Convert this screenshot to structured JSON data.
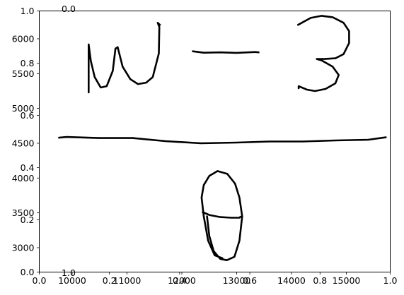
{
  "chart_data": [
    {
      "type": "axes",
      "xlim": [
        0.0,
        1.0
      ],
      "ylim": [
        0.0,
        1.0
      ],
      "x_ticks": [
        0.0,
        0.2,
        0.4,
        0.6,
        0.8,
        1.0
      ],
      "y_ticks": [
        0.0,
        0.2,
        0.4,
        0.6,
        0.8,
        1.0
      ],
      "x_tick_labels": [
        "0.0",
        "0.2",
        "0.4",
        "0.6",
        "0.8",
        "1.0"
      ],
      "y_tick_labels": [
        "0.0",
        "0.2",
        "0.4",
        "0.6",
        "0.8",
        "1.0"
      ],
      "grid": false
    },
    {
      "type": "line",
      "xlim": [
        9400,
        15800
      ],
      "ylim": [
        2650,
        6400
      ],
      "x_ticks": [
        10000,
        11000,
        12000,
        13000,
        14000,
        15000
      ],
      "y_ticks": [
        3000,
        3500,
        4000,
        4500,
        5000,
        5500,
        6000
      ],
      "x_tick_labels": [
        "10000",
        "11000",
        "12000",
        "13000",
        "14000",
        "15000"
      ],
      "y_tick_labels": [
        "3000",
        "3500",
        "4000",
        "4500",
        "5000",
        "5500",
        "6000"
      ],
      "stray_labels": [
        "1.0",
        "0.0"
      ],
      "series": [
        {
          "stroke": "omega",
          "x": [
            10300,
            10300,
            10340,
            10410,
            10520,
            10630,
            10740,
            10790,
            10830,
            10920,
            11060,
            11200,
            11350,
            11470,
            11580,
            11590,
            11560,
            11600
          ],
          "y": [
            5230,
            5920,
            5680,
            5450,
            5300,
            5320,
            5540,
            5860,
            5880,
            5600,
            5420,
            5350,
            5370,
            5450,
            5790,
            6170,
            6230,
            6200
          ]
        },
        {
          "stroke": "minus",
          "x": [
            12200,
            12400,
            12700,
            13000,
            13340,
            13400
          ],
          "y": [
            5820,
            5800,
            5805,
            5798,
            5810,
            5805
          ]
        },
        {
          "stroke": "three",
          "x": [
            14120,
            14350,
            14550,
            14750,
            14950,
            15050,
            15050,
            14950,
            14800,
            14600,
            14460,
            14550,
            14750,
            14860,
            14800,
            14620,
            14430,
            14280,
            14130,
            14130
          ],
          "y": [
            6200,
            6300,
            6330,
            6310,
            6230,
            6110,
            5940,
            5780,
            5720,
            5710,
            5710,
            5690,
            5600,
            5480,
            5360,
            5280,
            5250,
            5270,
            5320,
            5290
          ]
        },
        {
          "stroke": "fraction-bar",
          "x": [
            9760,
            9900,
            10500,
            11100,
            11700,
            12350,
            13000,
            13600,
            14200,
            14800,
            15400,
            15720
          ],
          "y": [
            4580,
            4590,
            4575,
            4575,
            4530,
            4500,
            4510,
            4525,
            4525,
            4540,
            4550,
            4585
          ]
        },
        {
          "stroke": "theta-ellipse",
          "x": [
            12740,
            12600,
            12480,
            12400,
            12360,
            12400,
            12500,
            12650,
            12830,
            12970,
            13050,
            13100,
            13050,
            12960,
            12820,
            12700,
            12580,
            12500,
            12460
          ],
          "y": [
            2850,
            2890,
            3100,
            3450,
            3720,
            3900,
            4030,
            4100,
            4060,
            3920,
            3720,
            3450,
            3100,
            2870,
            2820,
            2840,
            2950,
            3170,
            3450
          ]
        },
        {
          "stroke": "theta-crossbar",
          "x": [
            12380,
            12500,
            12700,
            12900,
            13050,
            13070
          ],
          "y": [
            3510,
            3470,
            3440,
            3430,
            3430,
            3445
          ]
        }
      ]
    }
  ]
}
